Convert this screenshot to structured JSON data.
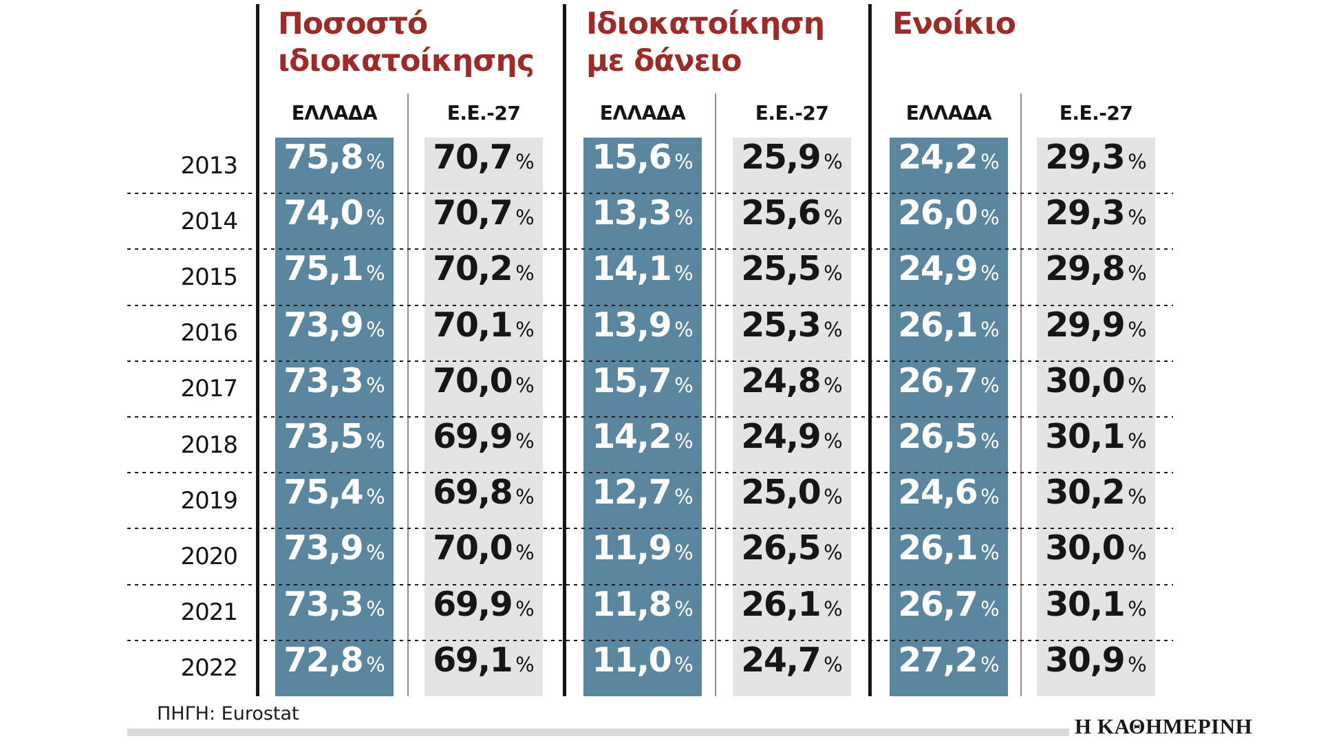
{
  "column_headers": {
    "greece": "ΕΛΛΑΔΑ",
    "eu": "Ε.Ε.-27"
  },
  "chart_data": {
    "type": "table",
    "categories": [
      "2013",
      "2014",
      "2015",
      "2016",
      "2017",
      "2018",
      "2019",
      "2020",
      "2021",
      "2022"
    ],
    "unit": "%",
    "value_format": "one-decimal-comma",
    "sections": [
      {
        "title": "Ποσοστό ιδιοκατοίκησης",
        "title_lines": [
          "Ποσοστό",
          "ιδιοκατοίκησης"
        ],
        "series": [
          {
            "name": "ΕΛΛΑΔΑ",
            "values": [
              75.8,
              74.0,
              75.1,
              73.9,
              73.3,
              73.5,
              75.4,
              73.9,
              73.3,
              72.8
            ]
          },
          {
            "name": "Ε.Ε.-27",
            "values": [
              70.7,
              70.7,
              70.2,
              70.1,
              70.0,
              69.9,
              69.8,
              70.0,
              69.9,
              69.1
            ]
          }
        ]
      },
      {
        "title": "Ιδιοκατοίκηση με δάνειο",
        "title_lines": [
          "Ιδιοκατοίκηση",
          "με δάνειο"
        ],
        "series": [
          {
            "name": "ΕΛΛΑΔΑ",
            "values": [
              15.6,
              13.3,
              14.1,
              13.9,
              15.7,
              14.2,
              12.7,
              11.9,
              11.8,
              11.0
            ]
          },
          {
            "name": "Ε.Ε.-27",
            "values": [
              25.9,
              25.6,
              25.5,
              25.3,
              24.8,
              24.9,
              25.0,
              26.5,
              26.1,
              24.7
            ]
          }
        ]
      },
      {
        "title": "Ενοίκιο",
        "title_lines": [
          "Ενοίκιο"
        ],
        "series": [
          {
            "name": "ΕΛΛΑΔΑ",
            "values": [
              24.2,
              26.0,
              24.9,
              26.1,
              26.7,
              26.5,
              24.6,
              26.1,
              26.7,
              27.2
            ]
          },
          {
            "name": "Ε.Ε.-27",
            "values": [
              29.3,
              29.3,
              29.8,
              29.9,
              30.0,
              30.1,
              30.2,
              30.0,
              30.1,
              30.9
            ]
          }
        ]
      }
    ]
  },
  "footer": {
    "source_label": "ΠΗΓΗ:",
    "source_value": "Eurostat",
    "brand": "Η ΚΑΘΗΜΕΡΙΝΗ"
  },
  "colors": {
    "greece_fill": "#5b86a0",
    "eu_fill": "#e4e4e4",
    "title": "#9e2b27",
    "value_on_greece": "#ffffff",
    "value_on_eu": "#161616",
    "rule": "#161616",
    "thin_rule": "#8c8c8c",
    "footer_bar": "#d9d9d9"
  }
}
